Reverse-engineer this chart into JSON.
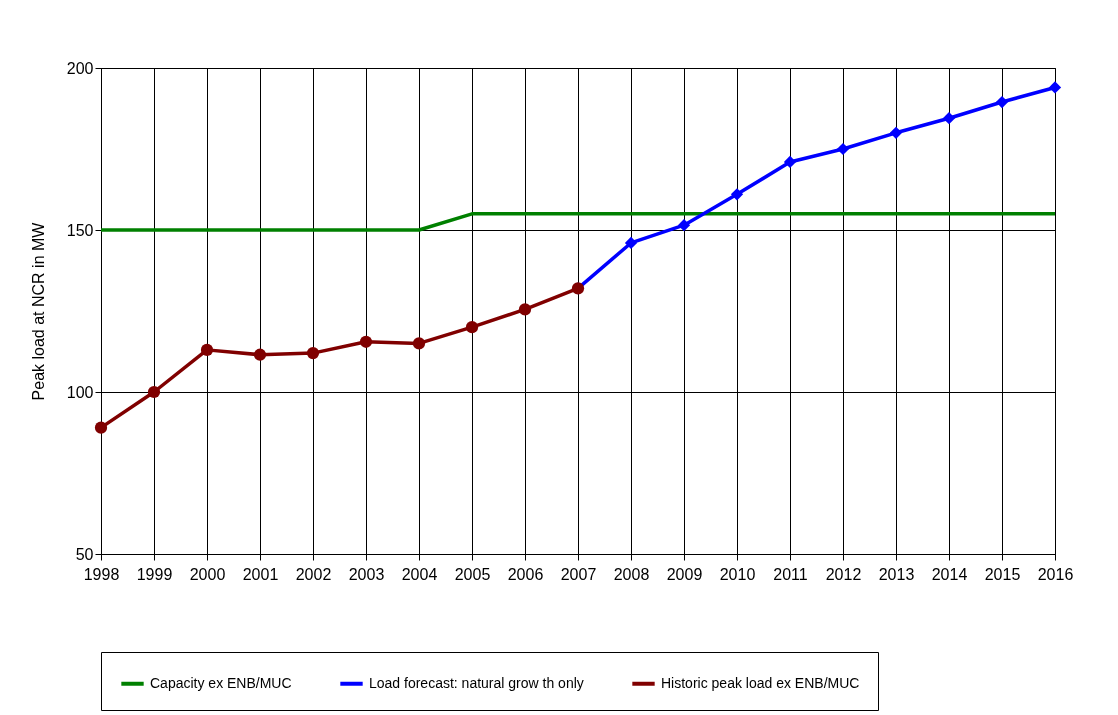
{
  "chart_data": {
    "type": "line",
    "ylabel": "Peak load at NCR in  MW",
    "x": [
      1998,
      1999,
      2000,
      2001,
      2002,
      2003,
      2004,
      2005,
      2006,
      2007,
      2008,
      2009,
      2010,
      2011,
      2012,
      2013,
      2014,
      2015,
      2016
    ],
    "xlim": [
      1998,
      2016
    ],
    "xticks": [
      1998,
      1999,
      2000,
      2001,
      2002,
      2003,
      2004,
      2005,
      2006,
      2007,
      2008,
      2009,
      2010,
      2011,
      2012,
      2013,
      2014,
      2015,
      2016
    ],
    "ylim": [
      50,
      200
    ],
    "yticks": [
      50,
      100,
      150,
      200
    ],
    "grid": true,
    "legend": "bottom",
    "series": [
      {
        "name": "Capacity ex ENB/MUC",
        "color": "#008000",
        "marker": "none",
        "values": [
          150,
          150,
          150,
          150,
          150,
          150,
          150,
          155,
          155,
          155,
          155,
          155,
          155,
          155,
          155,
          155,
          155,
          155,
          155
        ]
      },
      {
        "name": "Load forecast: natural grow th only",
        "color": "#0000ff",
        "marker": "diamond",
        "values": [
          null,
          null,
          null,
          null,
          null,
          null,
          null,
          null,
          null,
          132,
          146,
          151.5,
          161,
          171,
          175,
          180,
          184.5,
          189.5,
          194
        ]
      },
      {
        "name": "Historic peak load ex ENB/MUC",
        "color": "#800000",
        "marker": "circle",
        "values": [
          89,
          100,
          113,
          111.5,
          112,
          115.5,
          115,
          120,
          125.5,
          132,
          null,
          null,
          null,
          null,
          null,
          null,
          null,
          null,
          null
        ]
      }
    ]
  }
}
